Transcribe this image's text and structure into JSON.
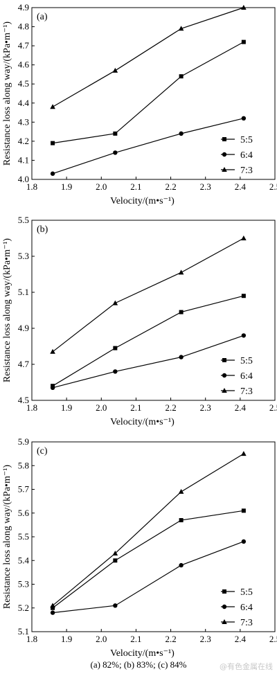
{
  "chart_data": [
    {
      "type": "line",
      "panel_label": "(a)",
      "xlabel": "Velocity/(m•s⁻¹)",
      "ylabel": "Resistance loss along way/(kPa•m⁻¹)",
      "xlim": [
        1.8,
        2.5
      ],
      "ylim": [
        4.0,
        4.9
      ],
      "xticks": [
        "1.8",
        "1.9",
        "2.0",
        "2.1",
        "2.2",
        "2.3",
        "2.4",
        "2.5"
      ],
      "yticks": [
        "4.0",
        "4.1",
        "4.2",
        "4.3",
        "4.4",
        "4.5",
        "4.6",
        "4.7",
        "4.8",
        "4.9"
      ],
      "legend_position": "lower-right",
      "x": [
        1.86,
        2.04,
        2.23,
        2.41
      ],
      "series": [
        {
          "name": "5:5",
          "marker": "square",
          "values": [
            4.19,
            4.24,
            4.54,
            4.72
          ]
        },
        {
          "name": "6:4",
          "marker": "circle",
          "values": [
            4.03,
            4.14,
            4.24,
            4.32
          ]
        },
        {
          "name": "7:3",
          "marker": "triangle",
          "values": [
            4.38,
            4.57,
            4.79,
            4.9
          ]
        }
      ]
    },
    {
      "type": "line",
      "panel_label": "(b)",
      "xlabel": "Velocity/(m•s⁻¹)",
      "ylabel": "Resistance loss along way/(kPa•m⁻¹)",
      "xlim": [
        1.8,
        2.5
      ],
      "ylim": [
        4.5,
        5.5
      ],
      "xticks": [
        "1.8",
        "1.9",
        "2.0",
        "2.1",
        "2.2",
        "2.3",
        "2.4",
        "2.5"
      ],
      "yticks": [
        "4.5",
        "4.7",
        "4.9",
        "5.1",
        "5.3",
        "5.5"
      ],
      "legend_position": "lower-right",
      "x": [
        1.86,
        2.04,
        2.23,
        2.41
      ],
      "series": [
        {
          "name": "5:5",
          "marker": "square",
          "values": [
            4.58,
            4.79,
            4.99,
            5.08
          ]
        },
        {
          "name": "6:4",
          "marker": "circle",
          "values": [
            4.57,
            4.66,
            4.74,
            4.86
          ]
        },
        {
          "name": "7:3",
          "marker": "triangle",
          "values": [
            4.77,
            5.04,
            5.21,
            5.4
          ]
        }
      ]
    },
    {
      "type": "line",
      "panel_label": "(c)",
      "xlabel": "Velocity/(m•s⁻¹)",
      "ylabel": "Resistance loss along way/(kPa•m⁻¹)",
      "xlim": [
        1.8,
        2.5
      ],
      "ylim": [
        5.1,
        5.9
      ],
      "xticks": [
        "1.8",
        "1.9",
        "2.0",
        "2.1",
        "2.2",
        "2.3",
        "2.4",
        "2.5"
      ],
      "yticks": [
        "5.1",
        "5.2",
        "5.3",
        "5.4",
        "5.5",
        "5.6",
        "5.7",
        "5.8",
        "5.9"
      ],
      "legend_position": "lower-right",
      "x": [
        1.86,
        2.04,
        2.23,
        2.41
      ],
      "series": [
        {
          "name": "5:5",
          "marker": "square",
          "values": [
            5.2,
            5.4,
            5.57,
            5.61
          ]
        },
        {
          "name": "6:4",
          "marker": "circle",
          "values": [
            5.18,
            5.21,
            5.38,
            5.48
          ]
        },
        {
          "name": "7:3",
          "marker": "triangle",
          "values": [
            5.21,
            5.43,
            5.69,
            5.85
          ]
        }
      ]
    }
  ],
  "caption": "(a) 82%; (b) 83%; (c) 84%",
  "watermark": "@有色金属在线"
}
